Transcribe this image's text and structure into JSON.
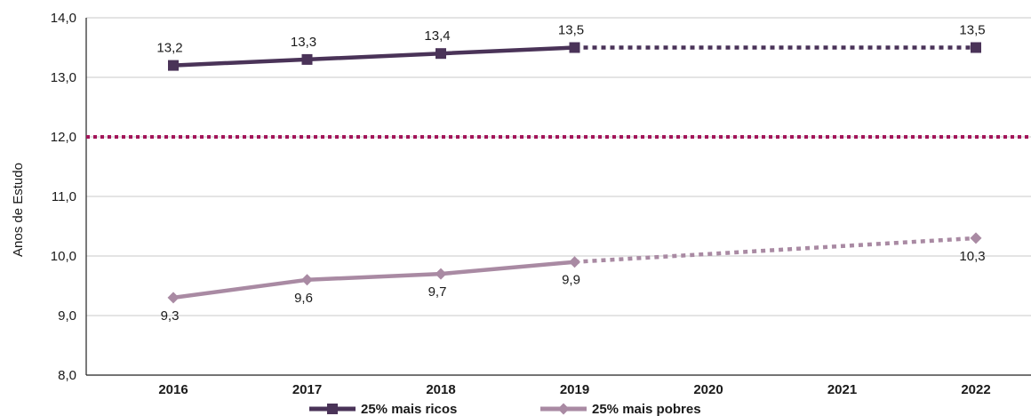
{
  "chart_data": {
    "type": "line",
    "ylabel": "Anos de Estudo",
    "ylim": [
      8.0,
      14.0
    ],
    "y_ticks": [
      "14,0",
      "13,0",
      "12,0",
      "11,0",
      "10,0",
      "9,0",
      "8,0"
    ],
    "y_tick_values": [
      14,
      13,
      12,
      11,
      10,
      9,
      8
    ],
    "categories": [
      "2016",
      "2017",
      "2018",
      "2019",
      "2020",
      "2021",
      "2022"
    ],
    "grid": "horizontal",
    "legend_position": "bottom",
    "reference_line": {
      "y": 12.0,
      "style": "dotted",
      "color": "#a3155a"
    },
    "series": [
      {
        "name": "25% mais ricos",
        "color": "#4a3358",
        "marker": "square",
        "points": [
          {
            "x": "2016",
            "y": 13.2,
            "label": "13,2"
          },
          {
            "x": "2017",
            "y": 13.3,
            "label": "13,3"
          },
          {
            "x": "2018",
            "y": 13.4,
            "label": "13,4"
          },
          {
            "x": "2019",
            "y": 13.5,
            "label": "13,5"
          },
          {
            "x": "2022",
            "y": 13.5,
            "label": "13,5"
          }
        ],
        "solid_until": "2019",
        "dotted_from": "2019"
      },
      {
        "name": "25% mais pobres",
        "color": "#a98aa3",
        "marker": "diamond",
        "points": [
          {
            "x": "2016",
            "y": 9.3,
            "label": "9,3"
          },
          {
            "x": "2017",
            "y": 9.6,
            "label": "9,6"
          },
          {
            "x": "2018",
            "y": 9.7,
            "label": "9,7"
          },
          {
            "x": "2019",
            "y": 9.9,
            "label": "9,9"
          },
          {
            "x": "2022",
            "y": 10.3,
            "label": "10,3"
          }
        ],
        "solid_until": "2019",
        "dotted_from": "2019"
      }
    ]
  }
}
